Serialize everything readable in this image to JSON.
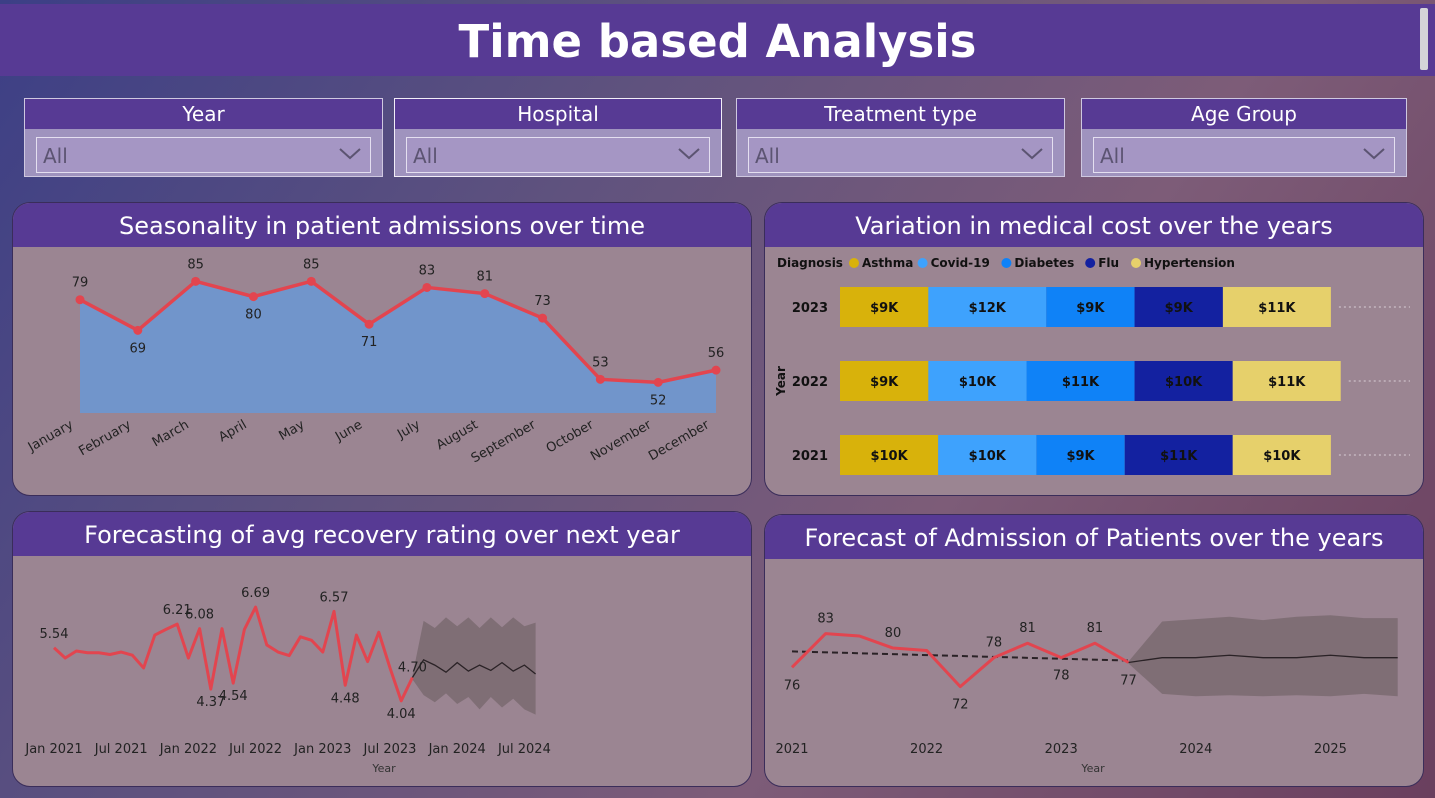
{
  "header": {
    "title": "Time based Analysis"
  },
  "filters": [
    {
      "label": "Year",
      "value": "All"
    },
    {
      "label": "Hospital",
      "value": "All"
    },
    {
      "label": "Treatment type",
      "value": "All"
    },
    {
      "label": "Age Group",
      "value": "All"
    }
  ],
  "colors": {
    "accent": "#573a94",
    "line": "#e2454f",
    "area": "#6f96cf",
    "asthma": "#d8b20b",
    "covid": "#3ea2fd",
    "diabetes": "#0f82f7",
    "flu": "#1321a0",
    "hypertension": "#e6d06b"
  },
  "chart_data": [
    {
      "type": "area",
      "title": "Seasonality in patient admissions over time",
      "categories": [
        "January",
        "February",
        "March",
        "April",
        "May",
        "June",
        "July",
        "August",
        "September",
        "October",
        "November",
        "December"
      ],
      "values": [
        79,
        69,
        85,
        80,
        85,
        71,
        83,
        81,
        73,
        53,
        52,
        56
      ],
      "ylim": [
        42,
        90
      ]
    },
    {
      "type": "bar",
      "title": "Variation in medical cost over the years",
      "orientation": "horizontal-stacked",
      "ylabel": "Year",
      "legend_title": "Diagnosis",
      "legend_placement": "top-left",
      "categories": [
        "2023",
        "2022",
        "2021"
      ],
      "series": [
        {
          "name": "Asthma",
          "values": [
            9,
            9,
            10
          ],
          "labels": [
            "$9K",
            "$9K",
            "$10K"
          ]
        },
        {
          "name": "Covid-19",
          "values": [
            12,
            10,
            10
          ],
          "labels": [
            "$12K",
            "$10K",
            "$10K"
          ]
        },
        {
          "name": "Diabetes",
          "values": [
            9,
            11,
            9
          ],
          "labels": [
            "$9K",
            "$11K",
            "$9K"
          ]
        },
        {
          "name": "Flu",
          "values": [
            9,
            10,
            11
          ],
          "labels": [
            "$9K",
            "$10K",
            "$11K"
          ]
        },
        {
          "name": "Hypertension",
          "values": [
            11,
            11,
            10
          ],
          "labels": [
            "$11K",
            "$11K",
            "$10K"
          ]
        }
      ],
      "xlim": [
        0,
        55
      ]
    },
    {
      "type": "line",
      "title": "Forecasting of avg recovery rating over next year",
      "xlabel": "Year",
      "tick_labels": [
        "Jan 2021",
        "Jul 2021",
        "Jan 2022",
        "Jul 2022",
        "Jan 2023",
        "Jul 2023",
        "Jan 2024",
        "Jul 2024"
      ],
      "tick_month_index": [
        0,
        6,
        12,
        18,
        24,
        30,
        36,
        42
      ],
      "values": [
        5.54,
        5.25,
        5.45,
        5.4,
        5.4,
        5.35,
        5.42,
        5.33,
        4.97,
        5.9,
        6.06,
        6.21,
        5.25,
        6.08,
        4.37,
        6.08,
        4.54,
        6.06,
        6.69,
        5.62,
        5.42,
        5.32,
        5.85,
        5.75,
        5.42,
        6.57,
        4.48,
        5.9,
        5.15,
        5.98,
        4.97,
        4.04,
        4.7
      ],
      "value_labels": {
        "0": "5.54",
        "11": "6.21",
        "13": "6.08",
        "14": "4.37",
        "16": "4.54",
        "18": "6.69",
        "25": "6.57",
        "26": "4.48",
        "31": "4.04",
        "32": "4.70"
      },
      "forecast": {
        "start_index": 32,
        "end_index": 43,
        "mean": [
          4.7,
          5.2,
          5.05,
          4.85,
          5.12,
          4.88,
          5.05,
          4.9,
          5.12,
          4.88,
          5.05,
          4.8
        ],
        "upper": [
          4.75,
          6.3,
          6.1,
          6.4,
          6.15,
          6.4,
          6.1,
          6.4,
          6.12,
          6.4,
          6.15,
          6.25
        ],
        "lower": [
          4.65,
          4.2,
          4.0,
          4.25,
          3.95,
          4.15,
          3.8,
          4.15,
          3.85,
          4.1,
          3.8,
          3.65
        ]
      },
      "ylim": [
        3.3,
        7.4
      ]
    },
    {
      "type": "line",
      "title": "Forecast of Admission of Patients over the years",
      "xlabel": "Year",
      "tick_labels": [
        "2021",
        "2022",
        "2023",
        "2024",
        "2025"
      ],
      "x": [
        0,
        0.25,
        0.5,
        0.75,
        1,
        1.25,
        1.5,
        1.75,
        2,
        2.25,
        2.5
      ],
      "values": [
        76,
        83,
        82.5,
        80,
        79.5,
        72,
        78,
        81,
        78,
        81,
        77
      ],
      "value_labels": {
        "0": "76",
        "1": "83",
        "3": "80",
        "5": "72",
        "6": "78",
        "7": "81",
        "8": "78",
        "9": "81",
        "10": "77"
      },
      "trend": [
        79.3,
        77.4
      ],
      "forecast": {
        "x": [
          2.5,
          2.75,
          3,
          3.25,
          3.5,
          3.75,
          4,
          4.25,
          4.5
        ],
        "mean": [
          77,
          78,
          78,
          78.5,
          78,
          78,
          78.5,
          78,
          78
        ],
        "upper": [
          77.2,
          85.5,
          86,
          86.5,
          85.8,
          86.5,
          86.8,
          86.2,
          86.2
        ],
        "lower": [
          76.8,
          70.5,
          70,
          70.2,
          70,
          70.2,
          70,
          70.5,
          70
        ]
      },
      "ylim": [
        63,
        91
      ]
    }
  ]
}
